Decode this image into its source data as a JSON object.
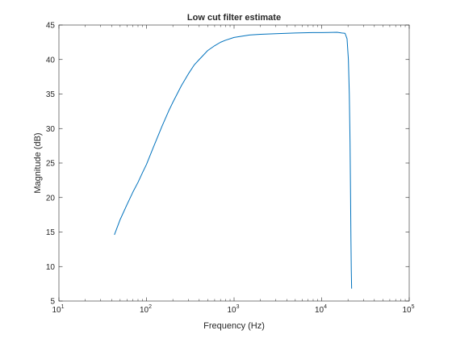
{
  "chart_data": {
    "type": "line",
    "title": "Low cut filter estimate",
    "xlabel": "Frequency (Hz)",
    "ylabel": "Magnitude (dB)",
    "xscale": "log",
    "xlim": [
      10,
      100000
    ],
    "ylim": [
      5,
      45
    ],
    "grid": false,
    "legend": "none",
    "x_ticks": [
      {
        "value": 10,
        "base": "10",
        "exp": "1"
      },
      {
        "value": 100,
        "base": "10",
        "exp": "2"
      },
      {
        "value": 1000,
        "base": "10",
        "exp": "3"
      },
      {
        "value": 10000,
        "base": "10",
        "exp": "4"
      },
      {
        "value": 100000,
        "base": "10",
        "exp": "5"
      }
    ],
    "y_ticks": [
      5,
      10,
      15,
      20,
      25,
      30,
      35,
      40,
      45
    ],
    "series": [
      {
        "color": "#0072bd",
        "x": [
          43,
          50,
          60,
          70,
          80,
          90,
          100,
          120,
          150,
          180,
          200,
          250,
          300,
          350,
          400,
          500,
          600,
          700,
          800,
          1000,
          1500,
          2000,
          3000,
          5000,
          8000,
          10000,
          12000,
          15000,
          17000,
          18500,
          19500,
          20200,
          20700,
          21100,
          21400,
          21600,
          21800,
          22000
        ],
        "y": [
          14.6,
          16.8,
          19.0,
          20.8,
          22.2,
          23.6,
          24.8,
          27.3,
          30.3,
          32.6,
          33.8,
          36.2,
          37.9,
          39.2,
          40.0,
          41.3,
          42.0,
          42.5,
          42.8,
          43.2,
          43.55,
          43.65,
          43.75,
          43.85,
          43.9,
          43.9,
          43.92,
          43.95,
          43.85,
          43.8,
          43.0,
          40.0,
          35.0,
          28.0,
          20.0,
          14.0,
          9.5,
          6.8
        ]
      }
    ]
  }
}
